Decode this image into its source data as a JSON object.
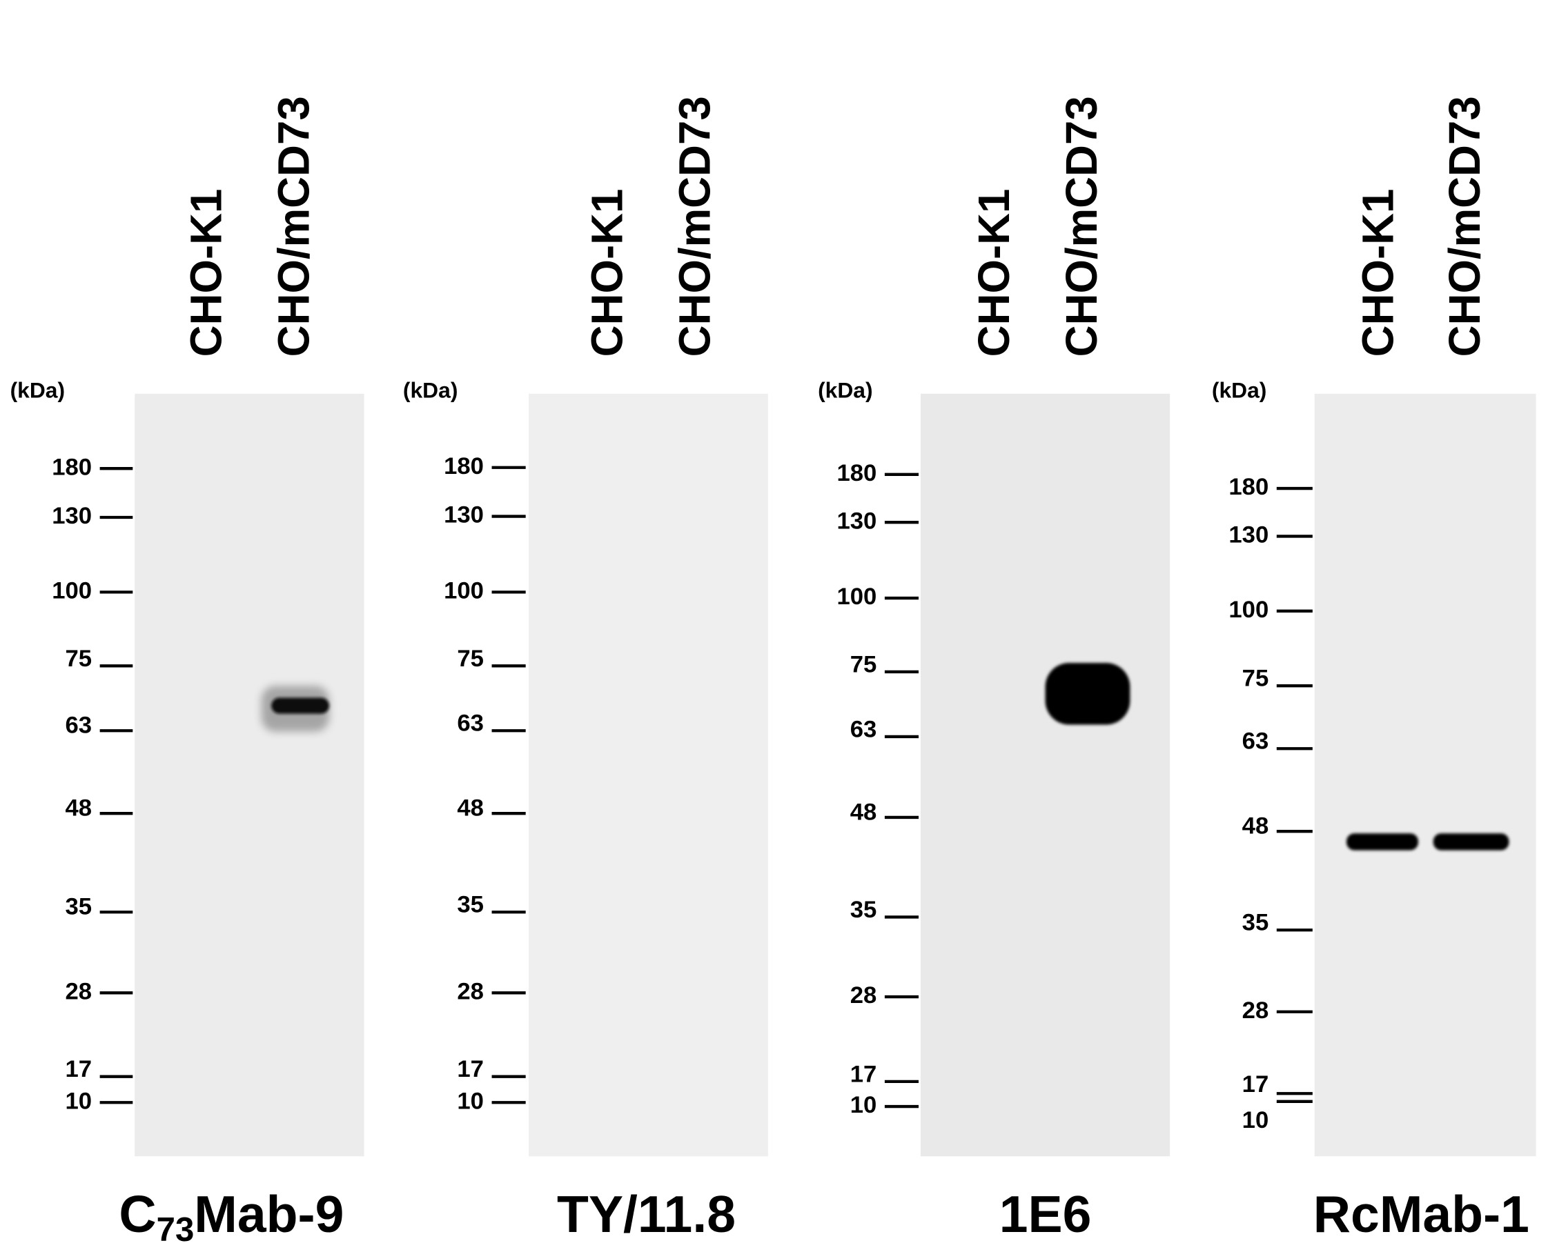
{
  "panels": [
    {
      "lanes": [
        "CHO-K1",
        "CHO/mCD73"
      ],
      "unit_label": "(kDa)",
      "markers": [
        "180",
        "130",
        "100",
        "75",
        "63",
        "48",
        "35",
        "28",
        "17",
        "10"
      ],
      "title": [
        {
          "text": "C"
        },
        {
          "text": "73",
          "sub": true
        },
        {
          "text": "Mab-9"
        }
      ]
    },
    {
      "lanes": [
        "CHO-K1",
        "CHO/mCD73"
      ],
      "unit_label": "(kDa)",
      "markers": [
        "180",
        "130",
        "100",
        "75",
        "63",
        "48",
        "35",
        "28",
        "17",
        "10"
      ],
      "title": [
        {
          "text": "TY/11.8"
        }
      ]
    },
    {
      "lanes": [
        "CHO-K1",
        "CHO/mCD73"
      ],
      "unit_label": "(kDa)",
      "markers": [
        "180",
        "130",
        "100",
        "75",
        "63",
        "48",
        "35",
        "28",
        "17",
        "10"
      ],
      "title": [
        {
          "text": "1E6"
        }
      ]
    },
    {
      "lanes": [
        "CHO-K1",
        "CHO/mCD73"
      ],
      "unit_label": "(kDa)",
      "markers": [
        "180",
        "130",
        "100",
        "75",
        "63",
        "48",
        "35",
        "28",
        "17",
        "10"
      ],
      "title": [
        {
          "text": "RcMab-1"
        }
      ]
    }
  ]
}
